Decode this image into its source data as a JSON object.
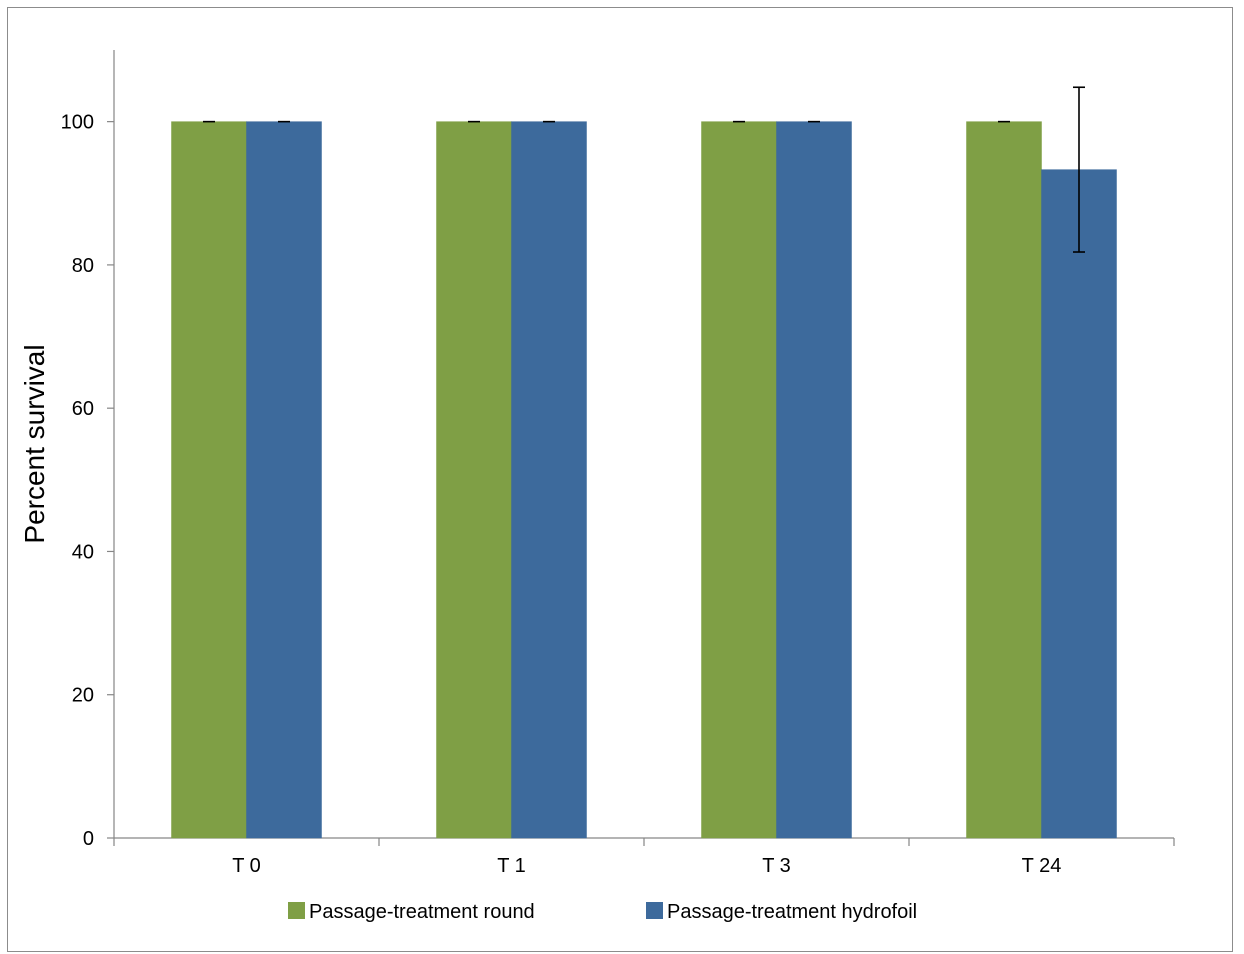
{
  "chart_data": {
    "type": "bar",
    "categories": [
      "T 0",
      "T 1",
      "T 3",
      "T 24"
    ],
    "series": [
      {
        "name": "Passage-treatment round",
        "color": "#7f9f45",
        "values": [
          100,
          100,
          100,
          100
        ],
        "errors": [
          0,
          0,
          0,
          0
        ]
      },
      {
        "name": "Passage-treatment hydrofoil",
        "color": "#3d6a9c",
        "values": [
          100,
          100,
          100,
          93.3
        ],
        "errors": [
          0,
          0,
          0,
          11.5
        ]
      }
    ],
    "title": "",
    "xlabel": "",
    "ylabel": "Percent survival",
    "ylim": [
      0,
      110
    ],
    "yticks": [
      0,
      20,
      40,
      60,
      80,
      100
    ],
    "grid": false,
    "legend_position": "bottom"
  }
}
